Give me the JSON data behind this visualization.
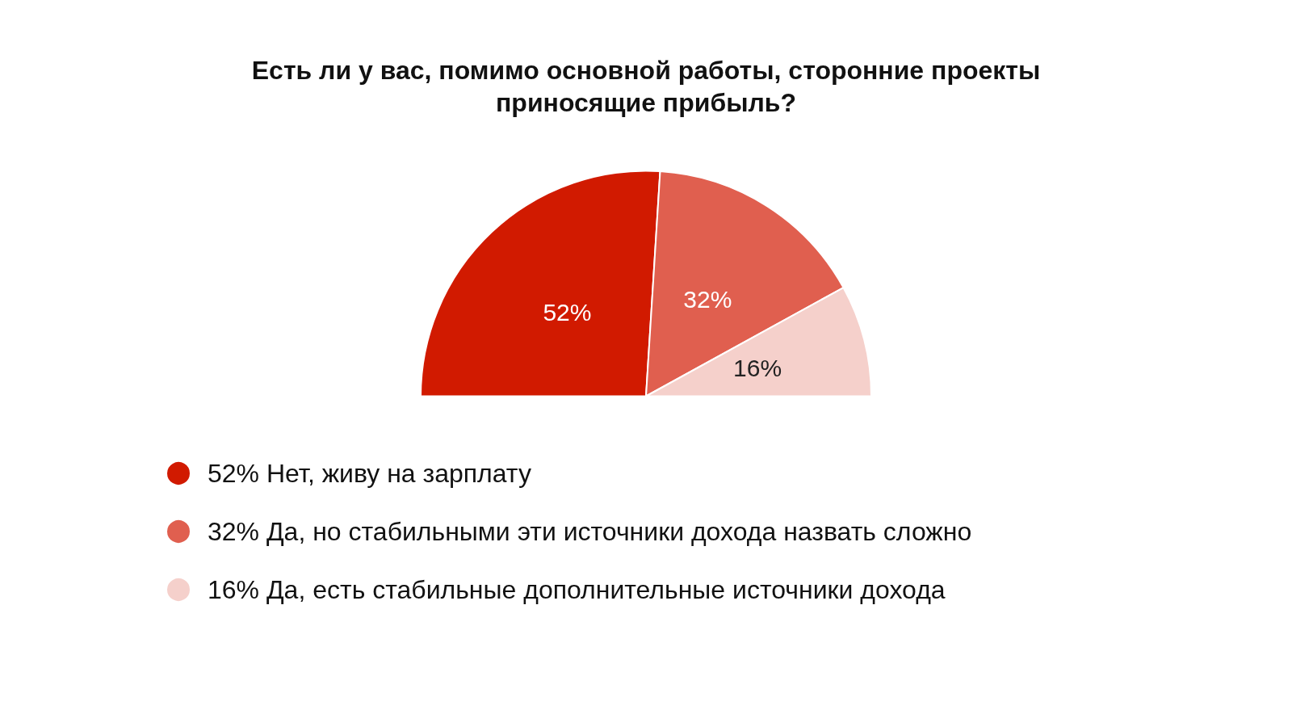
{
  "chart_data": {
    "type": "pie",
    "title": "Есть ли у вас, помимо основной работы, сторонние проекты\nприносящие прибыль?",
    "categories": [
      "Нет, живу на зарплату",
      "Да, но стабильными эти источники дохода назвать сложно",
      "Да, есть стабильные дополнительные источники дохода"
    ],
    "values": [
      52,
      32,
      16
    ],
    "value_labels": [
      "52%",
      "32%",
      "16%"
    ],
    "colors": [
      "#d11a00",
      "#e05f4f",
      "#f5d0cb"
    ],
    "legend": "bottom"
  }
}
